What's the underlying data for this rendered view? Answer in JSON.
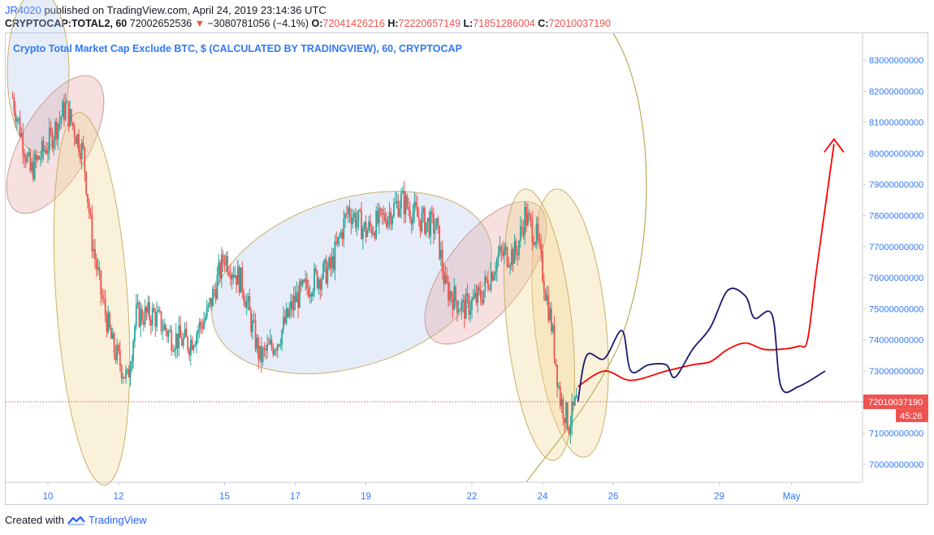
{
  "header": {
    "author": "JR4020",
    "published_text": "published on TradingView.com, April 24, 2019 23:14:36 UTC",
    "symbol": "CRYPTOCAP:TOTAL2, 60",
    "last_price": "72002652536",
    "change_arrow": "▼",
    "change": "−3080781056 (−4.1%)",
    "open_label": "O:",
    "open": "72041426216",
    "high_label": "H:",
    "high": "72220657149",
    "low_label": "L:",
    "low": "71851286004",
    "close_label": "C:",
    "close": "72010037190"
  },
  "study_title": "Crypto Total Market Cap Exclude BTC, $ (CALCULATED BY TRADINGVIEW), 60, CRYPTOCAP",
  "footer": {
    "created_with": "Created with",
    "brand": "TradingView"
  },
  "colors": {
    "up": "#26a69a",
    "down": "#ef5350",
    "accent": "#2962ff",
    "scale_text": "#3179f5",
    "forecast_red": "#ff0000",
    "forecast_navy": "#1a1a6e"
  },
  "chart_data": {
    "type": "candlestick",
    "x_ticks": [
      "10",
      "12",
      "15",
      "17",
      "19",
      "22",
      "24",
      "26",
      "29",
      "May"
    ],
    "y_ticks": [
      "70000000000",
      "71000000000",
      "72000000000",
      "73000000000",
      "74000000000",
      "75000000000",
      "76000000000",
      "77000000000",
      "78000000000",
      "79000000000",
      "80000000000",
      "81000000000",
      "82000000000",
      "83000000000"
    ],
    "ylim": [
      69400000000,
      83600000000
    ],
    "last_price_label": "72010037190",
    "countdown_label": "45:26",
    "price_path": [
      [
        "Apr 9 00:00",
        81800000000
      ],
      [
        "Apr 9 12:00",
        79400000000
      ],
      [
        "Apr 10 00:00",
        80300000000
      ],
      [
        "Apr 10 12:00",
        81500000000
      ],
      [
        "Apr 11 00:00",
        80000000000
      ],
      [
        "Apr 11 06:00",
        77200000000
      ],
      [
        "Apr 11 12:00",
        75500000000
      ],
      [
        "Apr 11 20:00",
        73800000000
      ],
      [
        "Apr 12 06:00",
        72700000000
      ],
      [
        "Apr 12 12:00",
        74800000000
      ],
      [
        "Apr 13 00:00",
        74800000000
      ],
      [
        "Apr 13 12:00",
        74100000000
      ],
      [
        "Apr 14 00:00",
        73900000000
      ],
      [
        "Apr 14 12:00",
        74800000000
      ],
      [
        "Apr 15 00:00",
        76700000000
      ],
      [
        "Apr 15 12:00",
        75800000000
      ],
      [
        "Apr 16 00:00",
        73400000000
      ],
      [
        "Apr 16 12:00",
        74000000000
      ],
      [
        "Apr 17 00:00",
        75300000000
      ],
      [
        "Apr 17 12:00",
        75900000000
      ],
      [
        "Apr 18 00:00",
        76300000000
      ],
      [
        "Apr 18 12:00",
        78200000000
      ],
      [
        "Apr 19 00:00",
        77500000000
      ],
      [
        "Apr 19 12:00",
        77900000000
      ],
      [
        "Apr 20 00:00",
        78500000000
      ],
      [
        "Apr 20 12:00",
        77900000000
      ],
      [
        "Apr 21 00:00",
        77600000000
      ],
      [
        "Apr 21 06:00",
        75700000000
      ],
      [
        "Apr 21 18:00",
        75000000000
      ],
      [
        "Apr 22 06:00",
        75400000000
      ],
      [
        "Apr 22 18:00",
        76700000000
      ],
      [
        "Apr 23 06:00",
        76800000000
      ],
      [
        "Apr 23 12:00",
        78000000000
      ],
      [
        "Apr 23 20:00",
        77300000000
      ],
      [
        "Apr 24 06:00",
        74500000000
      ],
      [
        "Apr 24 12:00",
        72100000000
      ],
      [
        "Apr 24 18:00",
        71300000000
      ],
      [
        "Apr 24 23:00",
        72000000000
      ]
    ],
    "forecast_lines": [
      {
        "color": "red",
        "points": [
          [
            "Apr 25 00:00",
            72500000000
          ],
          [
            "Apr 25 18:00",
            73000000000
          ],
          [
            "Apr 26 12:00",
            72700000000
          ],
          [
            "Apr 27 12:00",
            73000000000
          ],
          [
            "Apr 28 06:00",
            73200000000
          ],
          [
            "Apr 28 18:00",
            73300000000
          ],
          [
            "Apr 29 06:00",
            73700000000
          ],
          [
            "Apr 29 18:00",
            73900000000
          ],
          [
            "Apr 30 06:00",
            73700000000
          ],
          [
            "Apr 30 18:00",
            73700000000
          ],
          [
            "May 1 06:00",
            73800000000
          ],
          [
            "May 1 12:00",
            74000000000
          ],
          [
            "May 1 18:00",
            76200000000
          ],
          [
            "May 2 06:00",
            80300000000
          ]
        ]
      },
      {
        "color": "navy",
        "points": [
          [
            "Apr 25 00:00",
            72000000000
          ],
          [
            "Apr 25 06:00",
            73500000000
          ],
          [
            "Apr 25 18:00",
            73400000000
          ],
          [
            "Apr 26 06:00",
            74300000000
          ],
          [
            "Apr 26 12:00",
            73000000000
          ],
          [
            "Apr 27 00:00",
            73200000000
          ],
          [
            "Apr 27 12:00",
            73200000000
          ],
          [
            "Apr 27 18:00",
            72800000000
          ],
          [
            "Apr 28 06:00",
            73700000000
          ],
          [
            "Apr 28 18:00",
            74400000000
          ],
          [
            "Apr 29 06:00",
            75600000000
          ],
          [
            "Apr 29 18:00",
            75400000000
          ],
          [
            "Apr 30 00:00",
            74700000000
          ],
          [
            "Apr 30 12:00",
            74800000000
          ],
          [
            "Apr 30 18:00",
            72500000000
          ],
          [
            "May 1 06:00",
            72500000000
          ],
          [
            "May 2 00:00",
            73000000000
          ]
        ]
      }
    ],
    "ellipses": [
      "blue",
      "pink",
      "yellow",
      "yellow",
      "blue",
      "pink",
      "yellow",
      "large-yellow"
    ],
    "grid": false
  }
}
